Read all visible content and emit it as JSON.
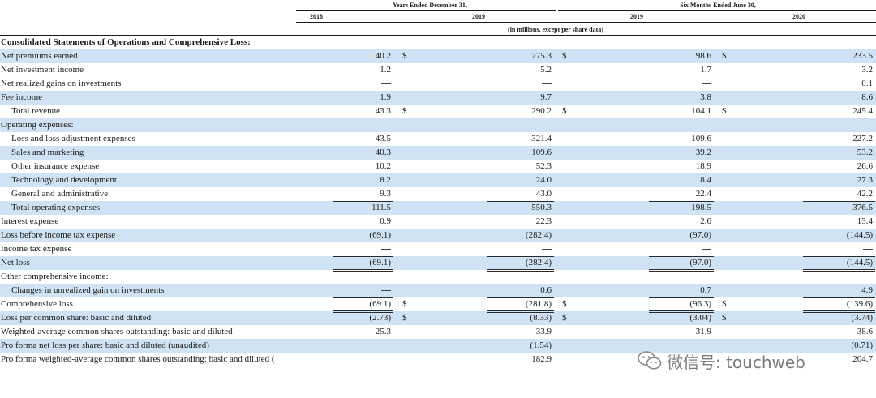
{
  "header": {
    "group_years": "Years Ended December 31,",
    "group_six_months": "Six Months Ended June 30,",
    "col_years": [
      "2018",
      "2019",
      "2019",
      "2020"
    ],
    "units": "(in millions, except per share data)"
  },
  "rows": [
    {
      "label": "Consolidated Statements of Operations and Comprehensive Loss:",
      "style": "bold",
      "shade": false,
      "values": [
        "",
        "",
        "",
        ""
      ],
      "cur": [
        "",
        "",
        ""
      ]
    },
    {
      "label": "Net premiums earned",
      "style": "",
      "shade": true,
      "values": [
        "40.2",
        "275.3",
        "98.6",
        "233.5"
      ],
      "cur": [
        "$",
        "$",
        "$"
      ]
    },
    {
      "label": "Net investment income",
      "style": "",
      "shade": false,
      "values": [
        "1.2",
        "5.2",
        "1.7",
        "3.2"
      ],
      "cur": [
        "",
        "",
        ""
      ]
    },
    {
      "label": "Net realized gains on investments",
      "style": "",
      "shade": false,
      "values": [
        "—",
        "—",
        "—",
        "0.1"
      ],
      "cur": [
        "",
        "",
        ""
      ]
    },
    {
      "label": "Fee income",
      "style": "",
      "shade": true,
      "values": [
        "1.9",
        "9.7",
        "3.8",
        "8.6"
      ],
      "cur": [
        "",
        "",
        ""
      ]
    },
    {
      "label": "Total revenue",
      "style": "ind",
      "shade": false,
      "values": [
        "43.3",
        "290.2",
        "104.1",
        "245.4"
      ],
      "cur": [
        "$",
        "$",
        "$"
      ]
    },
    {
      "label": "Operating expenses:",
      "style": "",
      "shade": true,
      "values": [
        "",
        "",
        "",
        ""
      ],
      "cur": [
        "",
        "",
        ""
      ]
    },
    {
      "label": "Loss and loss adjustment expenses",
      "style": "ind",
      "shade": false,
      "values": [
        "43.5",
        "321.4",
        "109.6",
        "227.2"
      ],
      "cur": [
        "",
        "",
        ""
      ]
    },
    {
      "label": "Sales and marketing",
      "style": "ind",
      "shade": true,
      "values": [
        "40.3",
        "109.6",
        "39.2",
        "53.2"
      ],
      "cur": [
        "",
        "",
        ""
      ]
    },
    {
      "label": "Other insurance expense",
      "style": "ind",
      "shade": false,
      "values": [
        "10.2",
        "52.3",
        "18.9",
        "26.6"
      ],
      "cur": [
        "",
        "",
        ""
      ]
    },
    {
      "label": "Technology and development",
      "style": "ind",
      "shade": true,
      "values": [
        "8.2",
        "24.0",
        "8.4",
        "27.3"
      ],
      "cur": [
        "",
        "",
        ""
      ]
    },
    {
      "label": "General and administrative",
      "style": "ind",
      "shade": false,
      "values": [
        "9.3",
        "43.0",
        "22.4",
        "42.2"
      ],
      "cur": [
        "",
        "",
        ""
      ]
    },
    {
      "label": "Total operating expenses",
      "style": "ind",
      "shade": true,
      "values": [
        "111.5",
        "550.3",
        "198.5",
        "376.5"
      ],
      "cur": [
        "",
        "",
        ""
      ]
    },
    {
      "label": "Interest expense",
      "style": "",
      "shade": false,
      "values": [
        "0.9",
        "22.3",
        "2.6",
        "13.4"
      ],
      "cur": [
        "",
        "",
        ""
      ]
    },
    {
      "label": "Loss before income tax expense",
      "style": "",
      "shade": true,
      "values": [
        "(69.1)",
        "(282.4)",
        "(97.0)",
        "(144.5)"
      ],
      "cur": [
        "",
        "",
        ""
      ]
    },
    {
      "label": "Income tax expense",
      "style": "",
      "shade": false,
      "values": [
        "—",
        "—",
        "—",
        "—"
      ],
      "cur": [
        "",
        "",
        ""
      ]
    },
    {
      "label": "Net loss",
      "style": "",
      "shade": true,
      "values": [
        "(69.1)",
        "(282.4)",
        "(97.0)",
        "(144.5)"
      ],
      "cur": [
        "",
        "",
        ""
      ]
    },
    {
      "label": "Other comprehensive income:",
      "style": "",
      "shade": false,
      "values": [
        "",
        "",
        "",
        ""
      ],
      "cur": [
        "",
        "",
        ""
      ]
    },
    {
      "label": "Changes in unrealized gain on investments",
      "style": "ind",
      "shade": true,
      "values": [
        "—",
        "0.6",
        "0.7",
        "4.9"
      ],
      "cur": [
        "",
        "",
        ""
      ]
    },
    {
      "label": "Comprehensive loss",
      "style": "",
      "shade": false,
      "values": [
        "(69.1)",
        "(281.8)",
        "(96.3)",
        "(139.6)"
      ],
      "cur": [
        "$",
        "$",
        "$"
      ]
    },
    {
      "label": "Loss per common share: basic and diluted",
      "style": "",
      "shade": true,
      "values": [
        "(2.73)",
        "(8.33)",
        "(3.04)",
        "(3.74)"
      ],
      "cur": [
        "$",
        "$",
        "$"
      ]
    },
    {
      "label": "Weighted-average common shares outstanding: basic and diluted",
      "style": "",
      "shade": false,
      "values": [
        "25.3",
        "33.9",
        "31.9",
        "38.6"
      ],
      "cur": [
        "",
        "",
        ""
      ]
    },
    {
      "label": "Pro forma net loss per share: basic and diluted (unaudited)",
      "style": "",
      "shade": true,
      "values": [
        "",
        "(1.54)",
        "",
        "(0.71)"
      ],
      "cur": [
        "",
        "",
        ""
      ]
    },
    {
      "label": "Pro forma weighted-average common shares outstanding: basic and diluted (",
      "style": "",
      "shade": false,
      "values": [
        "",
        "182.9",
        "",
        "204.7"
      ],
      "cur": [
        "",
        "",
        ""
      ]
    }
  ],
  "watermark": {
    "text": "微信号: touchweb",
    "icon": "wechat-icon"
  }
}
